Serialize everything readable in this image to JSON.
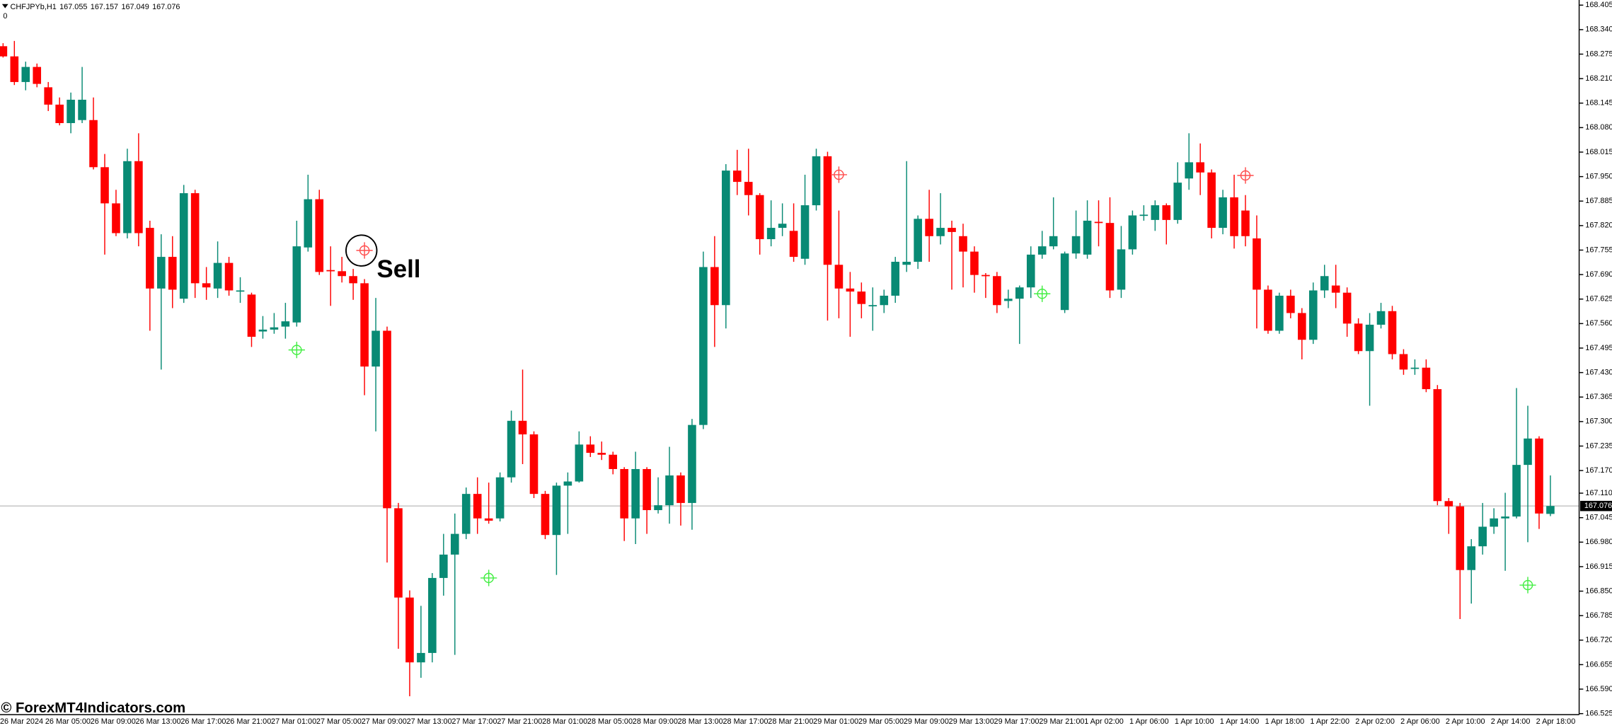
{
  "chart_data": {
    "type": "candlestick",
    "title": "CHFJPYb,H1",
    "header_ohlc": [
      167.055,
      167.157,
      167.049,
      167.076
    ],
    "indicator_value": 0,
    "annotation": "Sell",
    "watermark": "© ForexMT4Indicators.com",
    "up_color": "#088a74",
    "down_color": "#ff0000",
    "buy_color": "#44ee44",
    "sell_color": "#ff4d4d",
    "current_price": 167.076,
    "ylim": [
      166.525,
      168.405
    ],
    "yticks": [
      168.405,
      {
        "value": 168.34,
        "label": "168.340"
      },
      168.275,
      {
        "value": 168.21,
        "label": "168.210"
      },
      168.145,
      {
        "value": 168.08,
        "label": "168.080"
      },
      168.015,
      {
        "value": 167.95,
        "label": "167.950"
      },
      167.885,
      {
        "value": 167.82,
        "label": "167.820"
      },
      167.755,
      {
        "value": 167.69,
        "label": "167.690"
      },
      167.625,
      {
        "value": 167.56,
        "label": "167.560"
      },
      167.495,
      {
        "value": 167.43,
        "label": "167.430"
      },
      167.365,
      {
        "value": 167.3,
        "label": "167.300"
      },
      167.235,
      {
        "value": 167.17,
        "label": "167.170"
      },
      {
        "value": 167.11,
        "label": "167.110"
      },
      167.045,
      {
        "value": 166.98,
        "label": "166.980"
      },
      166.915,
      {
        "value": 166.85,
        "label": "166.850"
      },
      166.785,
      {
        "value": 166.72,
        "label": "166.720"
      },
      166.655,
      {
        "value": 166.59,
        "label": "166.590"
      },
      166.525
    ],
    "categories": [
      "26 Mar 2024",
      null,
      null,
      null,
      "26 Mar 05:00",
      null,
      null,
      null,
      "26 Mar 09:00",
      null,
      null,
      null,
      "26 Mar 13:00",
      null,
      null,
      null,
      "26 Mar 17:00",
      null,
      null,
      null,
      "26 Mar 21:00",
      null,
      null,
      null,
      "27 Mar 01:00",
      null,
      null,
      null,
      "27 Mar 05:00",
      null,
      null,
      null,
      "27 Mar 09:00",
      null,
      null,
      null,
      "27 Mar 13:00",
      null,
      null,
      null,
      "27 Mar 17:00",
      null,
      null,
      null,
      "27 Mar 21:00",
      null,
      null,
      null,
      "28 Mar 01:00",
      null,
      null,
      null,
      "28 Mar 05:00",
      null,
      null,
      null,
      "28 Mar 09:00",
      null,
      null,
      null,
      "28 Mar 13:00",
      null,
      null,
      null,
      "28 Mar 17:00",
      null,
      null,
      null,
      "28 Mar 21:00",
      null,
      null,
      null,
      "29 Mar 01:00",
      null,
      null,
      null,
      "29 Mar 05:00",
      null,
      null,
      null,
      "29 Mar 09:00",
      null,
      null,
      null,
      "29 Mar 13:00",
      null,
      null,
      null,
      "29 Mar 17:00",
      null,
      null,
      null,
      "29 Mar 21:00",
      null,
      null,
      null,
      "1 Apr 02:00",
      null,
      null,
      null,
      "1 Apr 06:00",
      null,
      null,
      null,
      "1 Apr 10:00",
      null,
      null,
      null,
      "1 Apr 14:00",
      null,
      null,
      null,
      "1 Apr 18:00",
      null,
      null,
      null,
      "1 Apr 22:00",
      null,
      null,
      null,
      "2 Apr 02:00",
      null,
      null,
      null,
      "2 Apr 06:00",
      null,
      null,
      null,
      "2 Apr 10:00",
      null,
      null,
      null,
      "2 Apr 14:00",
      null,
      null,
      null,
      "2 Apr 18:00",
      null
    ],
    "open": [
      168.296,
      168.269,
      168.201,
      168.241,
      168.187,
      168.141,
      168.092,
      168.1,
      168.1,
      167.975,
      167.879,
      167.8,
      167.991,
      167.814,
      167.653,
      167.737,
      167.626,
      167.906,
      167.667,
      167.653,
      167.721,
      167.645,
      167.637,
      167.539,
      167.544,
      167.552,
      167.563,
      167.762,
      167.89,
      167.702,
      167.699,
      167.686,
      167.667,
      167.446,
      167.541,
      167.07,
      166.833,
      166.661,
      166.686,
      166.885,
      166.947,
      167.002,
      167.108,
      167.043,
      167.043,
      167.152,
      167.302,
      167.266,
      167.108,
      166.999,
      167.13,
      167.141,
      167.239,
      167.217,
      167.212,
      167.174,
      167.043,
      167.174,
      167.065,
      167.078,
      167.157,
      167.084,
      167.291,
      167.71,
      167.609,
      167.966,
      167.936,
      167.901,
      167.784,
      167.814,
      167.806,
      167.732,
      167.874,
      168.004,
      167.716,
      167.653,
      167.645,
      167.607,
      167.609,
      167.634,
      167.716,
      167.724,
      167.838,
      167.792,
      167.814,
      167.792,
      167.751,
      167.689,
      167.686,
      167.62,
      167.626,
      167.656,
      167.743,
      167.765,
      167.596,
      167.746,
      167.743,
      167.83,
      167.827,
      167.65,
      167.757,
      167.847,
      167.835,
      167.874,
      167.835,
      167.945,
      167.988,
      167.961,
      167.814,
      167.895,
      167.86,
      167.786,
      167.65,
      167.541,
      167.634,
      167.588,
      167.517,
      167.648,
      167.661,
      167.642,
      167.56,
      167.487,
      167.557,
      167.593,
      167.479,
      167.441,
      167.443,
      167.386,
      167.089,
      167.075,
      166.906,
      166.969,
      167.021,
      167.043,
      167.048,
      167.185,
      167.255,
      167.055
    ],
    "high": [
      168.304,
      168.31,
      168.255,
      168.25,
      168.201,
      168.16,
      168.173,
      168.241,
      168.16,
      168.01,
      167.915,
      168.024,
      168.065,
      167.833,
      167.797,
      167.792,
      167.928,
      167.915,
      167.71,
      167.778,
      167.737,
      167.683,
      167.642,
      167.58,
      167.588,
      167.615,
      167.833,
      167.955,
      167.915,
      167.765,
      167.737,
      167.705,
      167.678,
      167.628,
      167.552,
      167.084,
      166.852,
      166.811,
      166.898,
      167.002,
      167.056,
      167.125,
      167.152,
      167.138,
      167.165,
      167.329,
      167.438,
      167.274,
      167.116,
      167.138,
      167.165,
      167.274,
      167.261,
      167.247,
      167.22,
      167.179,
      167.22,
      167.179,
      167.152,
      167.233,
      167.165,
      167.307,
      167.751,
      167.792,
      167.983,
      168.021,
      168.024,
      167.906,
      167.887,
      167.879,
      167.879,
      167.955,
      168.024,
      168.016,
      167.86,
      167.697,
      167.669,
      167.656,
      167.65,
      167.737,
      167.991,
      167.847,
      167.915,
      167.906,
      167.833,
      167.825,
      167.765,
      167.694,
      167.697,
      167.65,
      167.661,
      167.765,
      167.806,
      167.895,
      167.751,
      167.86,
      167.887,
      167.887,
      167.895,
      167.819,
      167.86,
      167.874,
      167.887,
      167.879,
      167.988,
      168.065,
      168.038,
      167.969,
      167.915,
      167.955,
      167.901,
      167.847,
      167.661,
      167.642,
      167.65,
      167.601,
      167.669,
      167.716,
      167.716,
      167.656,
      167.574,
      167.588,
      167.615,
      167.607,
      167.492,
      167.465,
      167.465,
      167.397,
      167.097,
      167.084,
      166.988,
      167.084,
      167.07,
      167.111,
      167.389,
      167.342,
      167.261,
      167.157
    ],
    "low": [
      168.266,
      168.193,
      168.179,
      168.187,
      168.124,
      168.086,
      168.065,
      168.092,
      167.969,
      167.743,
      167.792,
      167.786,
      167.765,
      167.541,
      167.438,
      167.601,
      167.615,
      167.628,
      167.623,
      167.628,
      167.634,
      167.615,
      167.498,
      167.52,
      167.533,
      167.52,
      167.552,
      167.751,
      167.689,
      167.607,
      167.669,
      167.623,
      167.37,
      167.274,
      166.926,
      166.697,
      166.571,
      166.62,
      166.661,
      166.838,
      166.681,
      166.988,
      167.002,
      167.029,
      167.035,
      167.138,
      167.187,
      167.097,
      166.988,
      166.893,
      167.002,
      167.138,
      167.206,
      167.198,
      167.16,
      166.983,
      166.975,
      167.002,
      167.056,
      167.029,
      167.024,
      167.013,
      167.28,
      167.498,
      167.547,
      167.901,
      167.847,
      167.743,
      167.765,
      167.792,
      167.724,
      167.716,
      167.86,
      167.568,
      167.574,
      167.525,
      167.574,
      167.541,
      167.588,
      167.615,
      167.697,
      167.705,
      167.724,
      167.77,
      167.65,
      167.656,
      167.642,
      167.628,
      167.588,
      167.601,
      167.506,
      167.628,
      167.732,
      167.757,
      167.588,
      167.732,
      167.732,
      167.765,
      167.628,
      167.628,
      167.743,
      167.833,
      167.806,
      167.77,
      167.825,
      167.915,
      167.901,
      167.786,
      167.797,
      167.759,
      167.765,
      167.547,
      167.533,
      167.533,
      167.574,
      167.465,
      167.506,
      167.628,
      167.601,
      167.525,
      167.479,
      167.342,
      167.547,
      167.465,
      167.424,
      167.424,
      167.378,
      167.078,
      167.002,
      166.776,
      166.817,
      166.947,
      167.002,
      166.904,
      167.043,
      166.98,
      167.015,
      167.049
    ],
    "close": [
      168.269,
      168.201,
      168.241,
      168.196,
      168.141,
      168.092,
      168.154,
      168.154,
      167.975,
      167.879,
      167.8,
      167.991,
      167.8,
      167.653,
      167.737,
      167.65,
      167.906,
      167.667,
      167.656,
      167.721,
      167.648,
      167.648,
      167.525,
      167.544,
      167.55,
      167.566,
      167.765,
      167.89,
      167.697,
      167.699,
      167.686,
      167.667,
      167.446,
      167.541,
      167.07,
      166.833,
      166.661,
      166.686,
      166.885,
      166.947,
      167.002,
      167.108,
      167.043,
      167.037,
      167.152,
      167.302,
      167.266,
      167.108,
      166.999,
      167.13,
      167.141,
      167.239,
      167.217,
      167.212,
      167.174,
      167.043,
      167.174,
      167.065,
      167.078,
      167.157,
      167.084,
      167.291,
      167.71,
      167.609,
      167.966,
      167.936,
      167.901,
      167.784,
      167.814,
      167.825,
      167.737,
      167.874,
      168.004,
      167.716,
      167.653,
      167.645,
      167.612,
      167.609,
      167.634,
      167.724,
      167.724,
      167.838,
      167.792,
      167.814,
      167.803,
      167.751,
      167.689,
      167.686,
      167.609,
      167.626,
      167.656,
      167.743,
      167.765,
      167.792,
      167.746,
      167.792,
      167.833,
      167.827,
      167.648,
      167.757,
      167.847,
      167.849,
      167.874,
      167.835,
      167.934,
      167.988,
      167.961,
      167.814,
      167.895,
      167.792,
      167.792,
      167.65,
      167.541,
      167.634,
      167.588,
      167.517,
      167.648,
      167.686,
      167.642,
      167.56,
      167.487,
      167.557,
      167.593,
      167.479,
      167.438,
      167.443,
      167.386,
      167.089,
      167.075,
      166.906,
      166.969,
      167.021,
      167.043,
      167.048,
      167.185,
      167.255,
      167.056,
      167.076
    ],
    "buy_signals": [
      null,
      null,
      null,
      null,
      null,
      null,
      null,
      null,
      null,
      null,
      null,
      null,
      null,
      null,
      null,
      null,
      null,
      null,
      null,
      null,
      null,
      null,
      null,
      null,
      null,
      null,
      167.49,
      null,
      null,
      null,
      null,
      null,
      null,
      null,
      null,
      null,
      null,
      null,
      null,
      null,
      null,
      null,
      null,
      166.885,
      null,
      null,
      null,
      null,
      null,
      null,
      null,
      null,
      null,
      null,
      null,
      null,
      null,
      null,
      null,
      null,
      null,
      null,
      null,
      null,
      null,
      null,
      null,
      null,
      null,
      null,
      null,
      null,
      null,
      null,
      null,
      null,
      null,
      null,
      null,
      null,
      null,
      null,
      null,
      null,
      null,
      null,
      null,
      null,
      null,
      null,
      null,
      null,
      167.639,
      null,
      null,
      null,
      null,
      null,
      null,
      null,
      null,
      null,
      null,
      null,
      null,
      null,
      null,
      null,
      null,
      null,
      null,
      null,
      null,
      null,
      null,
      null,
      null,
      null,
      null,
      null,
      null,
      null,
      null,
      null,
      null,
      null,
      null,
      null,
      null,
      null,
      null,
      null,
      null,
      null,
      null,
      166.866,
      null,
      null
    ],
    "sell_signals": [
      null,
      null,
      null,
      null,
      null,
      null,
      null,
      null,
      null,
      null,
      null,
      null,
      null,
      null,
      null,
      null,
      null,
      null,
      null,
      null,
      null,
      null,
      null,
      null,
      null,
      null,
      null,
      null,
      null,
      null,
      null,
      null,
      167.754,
      null,
      null,
      null,
      null,
      null,
      null,
      null,
      null,
      null,
      null,
      null,
      null,
      null,
      null,
      null,
      null,
      null,
      null,
      null,
      null,
      null,
      null,
      null,
      null,
      null,
      null,
      null,
      null,
      null,
      null,
      null,
      null,
      null,
      null,
      null,
      null,
      null,
      null,
      null,
      null,
      null,
      167.955,
      null,
      null,
      null,
      null,
      null,
      null,
      null,
      null,
      null,
      null,
      null,
      null,
      null,
      null,
      null,
      null,
      null,
      null,
      null,
      null,
      null,
      null,
      null,
      null,
      null,
      null,
      null,
      null,
      null,
      null,
      null,
      null,
      null,
      null,
      null,
      167.953,
      null,
      null,
      null,
      null,
      null,
      null,
      null,
      null,
      null,
      null,
      null,
      null,
      null,
      null,
      null,
      null,
      null,
      null,
      null,
      null,
      null,
      null,
      null,
      null,
      null,
      null,
      null
    ]
  }
}
